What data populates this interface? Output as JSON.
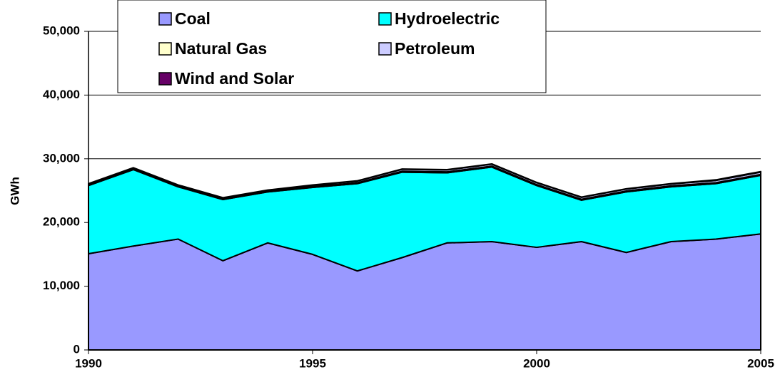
{
  "chart_data": {
    "type": "area",
    "stacked": true,
    "ylabel": "GWh",
    "x": [
      1990,
      1991,
      1992,
      1993,
      1994,
      1995,
      1996,
      1997,
      1998,
      1999,
      2000,
      2001,
      2002,
      2003,
      2004,
      2005
    ],
    "xlim": [
      1990,
      2005
    ],
    "xticks": [
      1990,
      1995,
      2000,
      2005
    ],
    "ylim": [
      0,
      50000
    ],
    "yticks": [
      0,
      {
        "value": 10000,
        "label": "10,000"
      },
      {
        "value": 20000,
        "label": "20,000"
      },
      {
        "value": 30000,
        "label": "30,000"
      },
      {
        "value": 40000,
        "label": "40,000"
      },
      {
        "value": 50000,
        "label": "50,000"
      }
    ],
    "grid": true,
    "legend": "top",
    "series": [
      {
        "name": "Coal",
        "color": "#9999ff",
        "values": [
          15100,
          16300,
          17400,
          14000,
          16800,
          15000,
          12400,
          14500,
          16800,
          17000,
          16100,
          17000,
          15300,
          17000,
          17400,
          18200
        ]
      },
      {
        "name": "Hydroelectric",
        "color": "#00ffff",
        "values": [
          10700,
          12000,
          8200,
          9600,
          8000,
          10500,
          13700,
          13400,
          11000,
          11700,
          9700,
          6500,
          9500,
          8600,
          8700,
          9200
        ]
      },
      {
        "name": "Natural Gas",
        "color": "#ffffcc",
        "values": [
          100,
          100,
          100,
          100,
          100,
          150,
          150,
          150,
          150,
          150,
          150,
          150,
          150,
          150,
          150,
          150
        ]
      },
      {
        "name": "Petroleum",
        "color": "#ccccff",
        "values": [
          150,
          150,
          150,
          150,
          150,
          200,
          250,
          300,
          300,
          300,
          300,
          300,
          300,
          300,
          350,
          350
        ]
      },
      {
        "name": "Wind and Solar",
        "color": "#660066",
        "values": [
          50,
          50,
          50,
          50,
          50,
          50,
          50,
          50,
          50,
          50,
          50,
          50,
          50,
          50,
          100,
          100
        ]
      }
    ]
  }
}
